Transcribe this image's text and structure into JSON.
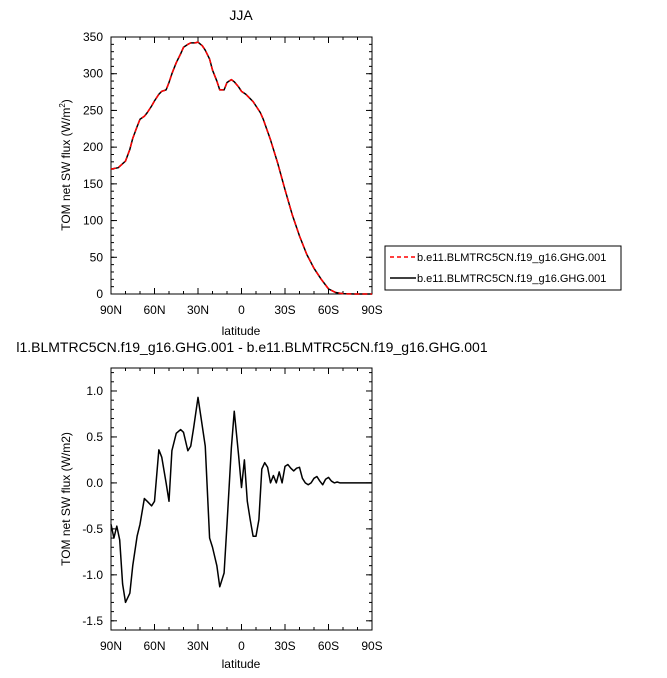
{
  "chart_data": [
    {
      "type": "line",
      "title": "JJA",
      "xlabel": "latitude",
      "ylabel": "TOM net SW flux (W/m",
      "ylabel_superscript": "2",
      "ylabel_close": ")",
      "xlim": [
        90,
        -90
      ],
      "ylim": [
        0,
        350
      ],
      "xticks": [
        90,
        60,
        30,
        0,
        -30,
        -60,
        -90
      ],
      "xtick_labels": [
        "90N",
        "60N",
        "30N",
        "0",
        "30S",
        "60S",
        "90S"
      ],
      "yticks": [
        0,
        50,
        100,
        150,
        200,
        250,
        300,
        350
      ],
      "ytick_labels": [
        "0",
        "50",
        "100",
        "150",
        "200",
        "250",
        "300",
        "350"
      ],
      "legend_placement": "right-outside",
      "series": [
        {
          "name": "b.e11.BLMTRC5CN.f19_g16.GHG.001",
          "color": "#ff0000",
          "style": "dashed",
          "x": [
            90,
            85,
            80,
            77,
            75,
            72,
            70,
            67,
            65,
            62,
            60,
            57,
            55,
            52,
            50,
            48,
            45,
            42,
            40,
            37,
            35,
            32,
            30,
            27,
            25,
            22,
            20,
            17,
            15,
            12,
            10,
            7,
            5,
            2,
            0,
            -3,
            -5,
            -8,
            -10,
            -13,
            -15,
            -20,
            -25,
            -30,
            -35,
            -40,
            -45,
            -50,
            -55,
            -60,
            -65,
            -68,
            -70,
            -73,
            -75,
            -78,
            -80,
            -90
          ],
          "y": [
            170,
            172,
            181,
            197,
            212,
            228,
            238,
            242,
            247,
            256,
            263,
            272,
            276,
            278,
            288,
            300,
            315,
            327,
            336,
            340,
            342,
            342,
            343,
            338,
            332,
            320,
            305,
            290,
            278,
            278,
            288,
            292,
            289,
            282,
            276,
            272,
            268,
            262,
            256,
            247,
            238,
            210,
            178,
            142,
            108,
            79,
            54,
            35,
            20,
            7,
            2,
            1,
            0.5,
            0.2,
            0.1,
            0,
            0,
            0
          ]
        },
        {
          "name": "b.e11.BLMTRC5CN.f19_g16.GHG.001",
          "color": "#000000",
          "style": "solid",
          "x": [
            90,
            85,
            80,
            77,
            75,
            72,
            70,
            67,
            65,
            62,
            60,
            57,
            55,
            52,
            50,
            48,
            45,
            42,
            40,
            37,
            35,
            32,
            30,
            27,
            25,
            22,
            20,
            17,
            15,
            12,
            10,
            7,
            5,
            2,
            0,
            -3,
            -5,
            -8,
            -10,
            -13,
            -15,
            -20,
            -25,
            -30,
            -35,
            -40,
            -45,
            -50,
            -55,
            -60,
            -65,
            -68,
            -70,
            -73,
            -75,
            -78,
            -80,
            -90
          ],
          "y": [
            170,
            172,
            181,
            197,
            212,
            228,
            238,
            242,
            247,
            256,
            263,
            272,
            276,
            278,
            288,
            300,
            315,
            327,
            336,
            340,
            342,
            342,
            343,
            338,
            332,
            320,
            305,
            290,
            278,
            278,
            288,
            292,
            289,
            282,
            276,
            272,
            268,
            262,
            256,
            247,
            238,
            210,
            178,
            142,
            108,
            79,
            54,
            35,
            20,
            7,
            2,
            1,
            0.5,
            0.2,
            0.1,
            0,
            0,
            0
          ]
        }
      ]
    },
    {
      "type": "line",
      "title": "l1.BLMTRC5CN.f19_g16.GHG.001 - b.e11.BLMTRC5CN.f19_g16.GHG.001",
      "xlabel": "latitude",
      "ylabel": "TOM net SW flux (W/m2)",
      "xlim": [
        90,
        -90
      ],
      "ylim": [
        -1.6,
        1.25
      ],
      "xticks": [
        90,
        60,
        30,
        0,
        -30,
        -60,
        -90
      ],
      "xtick_labels": [
        "90N",
        "60N",
        "30N",
        "0",
        "30S",
        "60S",
        "90S"
      ],
      "yticks": [
        -1.5,
        -1.0,
        -0.5,
        0.0,
        0.5,
        1.0
      ],
      "ytick_labels": [
        "-1.5",
        "-1.0",
        "-0.5",
        "0.0",
        "0.5",
        "1.0"
      ],
      "series": [
        {
          "color": "#000000",
          "style": "solid",
          "x": [
            90,
            88,
            86,
            84,
            82,
            80,
            77,
            75,
            72,
            70,
            67,
            65,
            62,
            60,
            57,
            55,
            52,
            50,
            48,
            45,
            42,
            40,
            37,
            35,
            33,
            30,
            28,
            25,
            22,
            20,
            17,
            15,
            12,
            10,
            7,
            5,
            2,
            0,
            -2,
            -4,
            -6,
            -8,
            -10,
            -12,
            -14,
            -16,
            -18,
            -20,
            -22,
            -24,
            -26,
            -28,
            -30,
            -32,
            -34,
            -36,
            -38,
            -40,
            -42,
            -44,
            -46,
            -48,
            -50,
            -52,
            -54,
            -56,
            -58,
            -60,
            -62,
            -64,
            -66,
            -68,
            -70,
            -80,
            -90
          ],
          "y": [
            -0.45,
            -0.6,
            -0.47,
            -0.62,
            -1.1,
            -1.3,
            -1.2,
            -0.9,
            -0.58,
            -0.45,
            -0.17,
            -0.2,
            -0.25,
            -0.2,
            0.36,
            0.28,
            0.0,
            -0.2,
            0.35,
            0.54,
            0.58,
            0.55,
            0.35,
            0.4,
            0.6,
            0.93,
            0.72,
            0.4,
            -0.6,
            -0.7,
            -0.9,
            -1.13,
            -0.98,
            -0.45,
            0.38,
            0.78,
            0.3,
            -0.05,
            0.25,
            -0.2,
            -0.4,
            -0.58,
            -0.58,
            -0.4,
            0.15,
            0.22,
            0.17,
            0.0,
            0.08,
            0.0,
            0.12,
            0.0,
            0.18,
            0.2,
            0.16,
            0.13,
            0.16,
            0.17,
            0.05,
            0.0,
            -0.02,
            0.0,
            0.05,
            0.07,
            0.02,
            -0.02,
            0.04,
            0.06,
            0.02,
            0.0,
            0.01,
            0.0,
            0.0,
            0.0,
            0.0
          ]
        }
      ]
    }
  ]
}
